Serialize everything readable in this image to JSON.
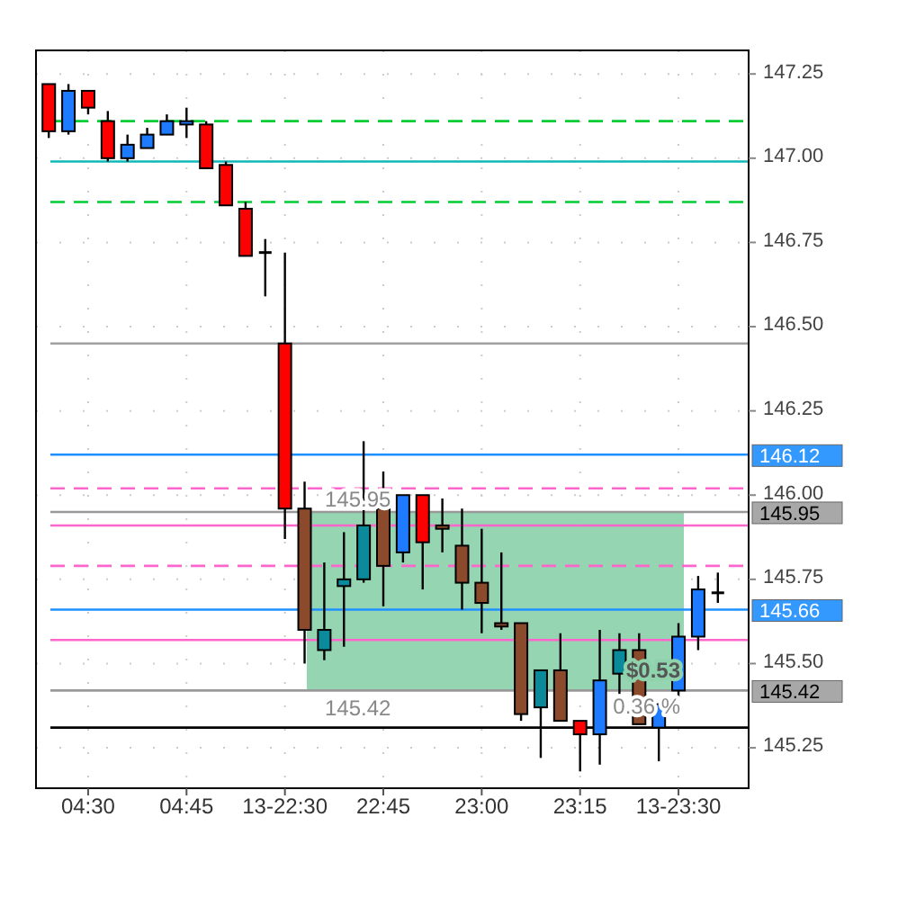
{
  "chart_data": {
    "type": "candlestick",
    "categories": [
      null,
      null,
      "04:30",
      null,
      null,
      null,
      null,
      "04:45",
      null,
      null,
      null,
      null,
      "13-22:30",
      null,
      null,
      null,
      null,
      "22:45",
      null,
      null,
      null,
      null,
      "23:00",
      null,
      null,
      null,
      null,
      "23:15",
      null,
      null,
      null,
      null,
      "13-23:30",
      null,
      null
    ],
    "ohlc": [
      [
        147.22,
        147.22,
        147.06,
        147.08
      ],
      [
        147.08,
        147.22,
        147.07,
        147.2
      ],
      [
        147.2,
        147.2,
        147.13,
        147.15
      ],
      [
        147.11,
        147.14,
        146.99,
        147.0
      ],
      [
        147.0,
        147.07,
        146.99,
        147.04
      ],
      [
        147.03,
        147.09,
        147.03,
        147.07
      ],
      [
        147.07,
        147.13,
        147.07,
        147.11
      ],
      [
        147.1,
        147.15,
        147.06,
        147.11
      ],
      [
        147.1,
        147.11,
        146.97,
        146.97
      ],
      [
        146.98,
        146.99,
        146.86,
        146.86
      ],
      [
        146.85,
        146.87,
        146.71,
        146.71
      ],
      [
        146.72,
        146.76,
        146.59,
        146.72
      ],
      [
        146.45,
        146.72,
        145.87,
        145.96
      ],
      [
        145.96,
        146.04,
        145.5,
        145.6
      ],
      [
        145.54,
        145.8,
        145.51,
        145.6
      ],
      [
        145.73,
        145.89,
        145.55,
        145.75
      ],
      [
        145.75,
        146.16,
        145.74,
        145.91
      ],
      [
        145.96,
        146.07,
        145.67,
        145.79
      ],
      [
        145.83,
        146.0,
        145.8,
        146.0
      ],
      [
        146.0,
        146.0,
        145.72,
        145.86
      ],
      [
        145.91,
        145.99,
        145.83,
        145.9
      ],
      [
        145.85,
        145.96,
        145.66,
        145.74
      ],
      [
        145.74,
        145.9,
        145.59,
        145.68
      ],
      [
        145.62,
        145.83,
        145.6,
        145.61
      ],
      [
        145.62,
        145.62,
        145.33,
        145.35
      ],
      [
        145.37,
        145.48,
        145.22,
        145.48
      ],
      [
        145.48,
        145.59,
        145.33,
        145.33
      ],
      [
        145.33,
        145.33,
        145.18,
        145.29
      ],
      [
        145.29,
        145.6,
        145.2,
        145.45
      ],
      [
        145.47,
        145.59,
        145.41,
        145.54
      ],
      [
        145.54,
        145.59,
        145.32,
        145.32
      ],
      [
        145.31,
        145.38,
        145.21,
        145.38
      ],
      [
        145.42,
        145.62,
        145.4,
        145.58
      ],
      [
        145.58,
        145.76,
        145.54,
        145.72
      ],
      [
        145.71,
        145.77,
        145.68,
        145.71
      ]
    ],
    "colors": [
      "#ff0000",
      "#1e7bff",
      "#ff0000",
      "#ff0000",
      "#1e7bff",
      "#1e7bff",
      "#1e7bff",
      "#1e7bff",
      "#ff0000",
      "#ff0000",
      "#ff0000",
      "#000000",
      "#ff0000",
      "#8b4a2b",
      "#0a8a9a",
      "#0a8a9a",
      "#0a8a9a",
      "#8b4a2b",
      "#1e7bff",
      "#ff0000",
      "#8b4a2b",
      "#8b4a2b",
      "#8b4a2b",
      "#8b4a2b",
      "#8b4a2b",
      "#0a8a9a",
      "#8b4a2b",
      "#ff0000",
      "#1e7bff",
      "#0a8a9a",
      "#8b4a2b",
      "#1e7bff",
      "#1e7bff",
      "#1e7bff",
      "#000000"
    ],
    "ylim": [
      145.13,
      147.32
    ],
    "yticks": [
      145.25,
      {
        "value": 145.5,
        "label": "145.50"
      },
      145.75,
      {
        "value": 146.0,
        "label": "146.00"
      },
      146.25,
      {
        "value": 146.5,
        "label": "146.50"
      },
      146.75,
      {
        "value": 147.0,
        "label": "147.00"
      },
      147.25
    ],
    "grid": true,
    "ref_lines": [
      {
        "axis": "y",
        "value": 147.11,
        "color": "#00cc33",
        "line_style": "dashed"
      },
      {
        "axis": "y",
        "value": 146.99,
        "color": "#10b8b8",
        "line_style": "solid"
      },
      {
        "axis": "y",
        "value": 146.87,
        "color": "#00cc33",
        "line_style": "dashed"
      },
      {
        "axis": "y",
        "value": 146.45,
        "color": "#a0a0a0",
        "line_style": "solid"
      },
      {
        "axis": "y",
        "value": 146.12,
        "label": "146.12",
        "color": "#1e90ff",
        "line_style": "solid"
      },
      {
        "axis": "y",
        "value": 146.02,
        "color": "#ff66cc",
        "line_style": "dashed"
      },
      {
        "axis": "y",
        "value": 145.95,
        "label": "145.95",
        "color": "#999999",
        "line_style": "solid"
      },
      {
        "axis": "y",
        "value": 145.91,
        "color": "#ff66cc",
        "line_style": "solid"
      },
      {
        "axis": "y",
        "value": 145.79,
        "color": "#ff66cc",
        "line_style": "dashed"
      },
      {
        "axis": "y",
        "value": 145.66,
        "label": "145.66",
        "color": "#1e90ff",
        "line_style": "solid"
      },
      {
        "axis": "y",
        "value": 145.57,
        "color": "#ff66cc",
        "line_style": "solid"
      },
      {
        "axis": "y",
        "value": 145.42,
        "label": "145.42",
        "color": "#999999",
        "line_style": "solid"
      },
      {
        "axis": "y",
        "value": 145.31,
        "color": "#000000",
        "line_style": "solid"
      }
    ],
    "bands": [
      {
        "axis": "y",
        "from": 145.42,
        "to": 145.95,
        "color": "#8fd3ad"
      }
    ],
    "annotations": [
      {
        "text": "145.95",
        "y": 145.95
      },
      {
        "text": "145.42",
        "y": 145.42
      },
      {
        "text": "$0.53",
        "y": 145.48
      },
      {
        "text": "0.36 %",
        "y": 145.42
      }
    ]
  }
}
